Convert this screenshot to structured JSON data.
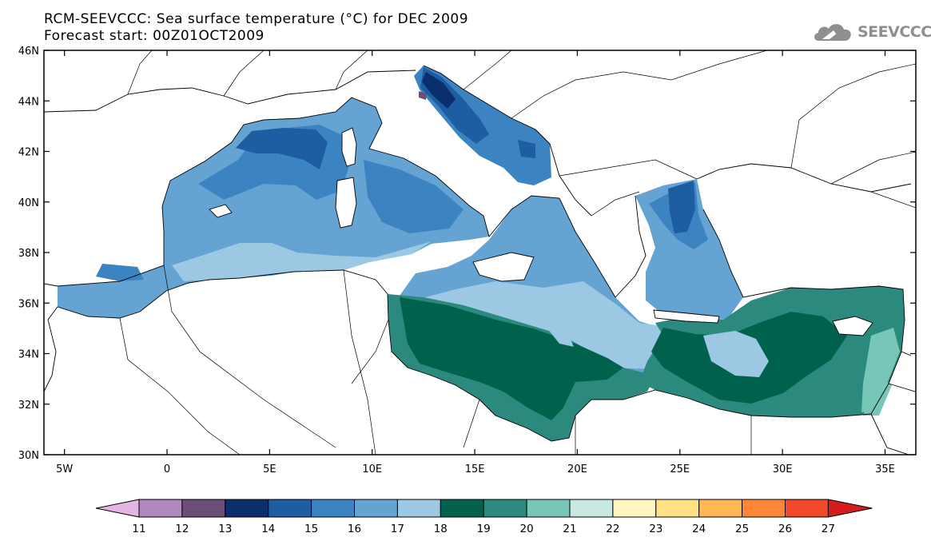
{
  "header": {
    "title_line1": "RCM-SEEVCCC: Sea surface temperature (°C) for DEC 2009",
    "title_line2": "Forecast start: 00Z01OCT2009"
  },
  "logo": {
    "text": "SEEVCCC",
    "icon": "cloud-icon"
  },
  "map": {
    "lon_range": [
      -6,
      36.5
    ],
    "lat_range": [
      30,
      46
    ],
    "lat_ticks": [
      "30N",
      "32N",
      "34N",
      "36N",
      "38N",
      "40N",
      "42N",
      "44N",
      "46N"
    ],
    "lon_ticks": [
      "5W",
      "0",
      "5E",
      "10E",
      "15E",
      "20E",
      "25E",
      "30E",
      "35E"
    ]
  },
  "colorbar": {
    "labels": [
      "11",
      "12",
      "13",
      "14",
      "15",
      "16",
      "17",
      "18",
      "19",
      "20",
      "21",
      "22",
      "23",
      "24",
      "25",
      "26",
      "27"
    ],
    "colors": [
      "#e4b4e2",
      "#b088be",
      "#6b4f76",
      "#0b2f6d",
      "#1d5da2",
      "#3b84c1",
      "#65a3d3",
      "#9cc8e4",
      "#00614c",
      "#2b8a7d",
      "#77c6b8",
      "#c7e9e2",
      "#fff6c0",
      "#ffe083",
      "#ffb754",
      "#ff8637",
      "#f04a2a",
      "#d41e1e"
    ]
  }
}
